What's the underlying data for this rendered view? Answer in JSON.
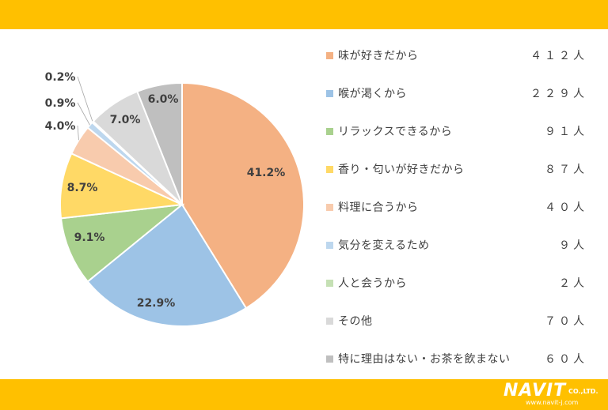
{
  "logo": {
    "brand": "NAVIT",
    "company": "CO.,LTD.",
    "url": "www.navit-j.com"
  },
  "chart_data": {
    "type": "pie",
    "slices": [
      {
        "label": "味が好きだから",
        "count": "４１２人",
        "value": 41.2,
        "value_label": "41.2%",
        "color": "#F4B183"
      },
      {
        "label": "喉が渇くから",
        "count": "２２９人",
        "value": 22.9,
        "value_label": "22.9%",
        "color": "#9DC3E6"
      },
      {
        "label": "リラックスできるから",
        "count": "９１人",
        "value": 9.1,
        "value_label": "9.1%",
        "color": "#A9D18E"
      },
      {
        "label": "香り・匂いが好きだから",
        "count": "８７人",
        "value": 8.7,
        "value_label": "8.7%",
        "color": "#FFD966"
      },
      {
        "label": "料理に合うから",
        "count": "４０人",
        "value": 4.0,
        "value_label": "4.0%",
        "color": "#F8CBAD"
      },
      {
        "label": "気分を変えるため",
        "count": "９人",
        "value": 0.9,
        "value_label": "0.9%",
        "color": "#BDD7EE"
      },
      {
        "label": "人と会うから",
        "count": "２人",
        "value": 0.2,
        "value_label": "0.2%",
        "color": "#C5E0B4"
      },
      {
        "label": "その他",
        "count": "７０人",
        "value": 7.0,
        "value_label": "7.0%",
        "color": "#D9D9D9"
      },
      {
        "label": "特に理由はない・お茶を飲まない",
        "count": "６０人",
        "value": 6.0,
        "value_label": "6.0%",
        "color": "#BFBFBF"
      }
    ],
    "start_angle": "12 o'clock",
    "direction": "clockwise",
    "legend_position": "right"
  }
}
